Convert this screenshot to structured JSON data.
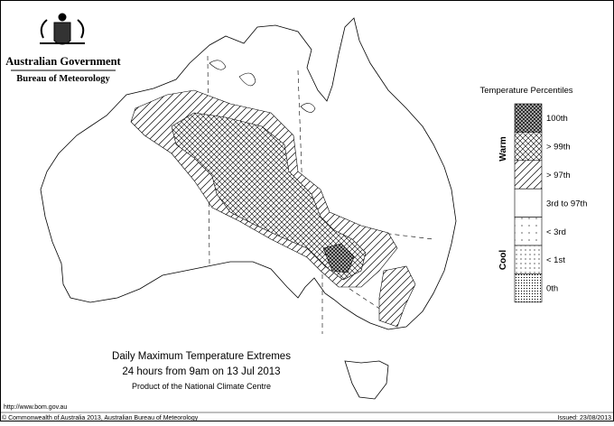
{
  "header": {
    "government": "Australian Government",
    "agency": "Bureau of Meteorology"
  },
  "legend": {
    "title": "Temperature Percentiles",
    "warm_label": "Warm",
    "cool_label": "Cool",
    "items": [
      "100th",
      "> 99th",
      "> 97th",
      "3rd to 97th",
      "< 3rd",
      "< 1st",
      "0th"
    ]
  },
  "caption": {
    "title": "Daily Maximum Temperature Extremes",
    "period": "24 hours from 9am on 13 Jul 2013",
    "credit": "Product of the National Climate Centre"
  },
  "footer": {
    "url": "http://www.bom.gov.au",
    "copyright": "© Commonwealth of Australia 2013, Australian Bureau of Meteorology",
    "issued": "Issued: 23/08/2013"
  }
}
